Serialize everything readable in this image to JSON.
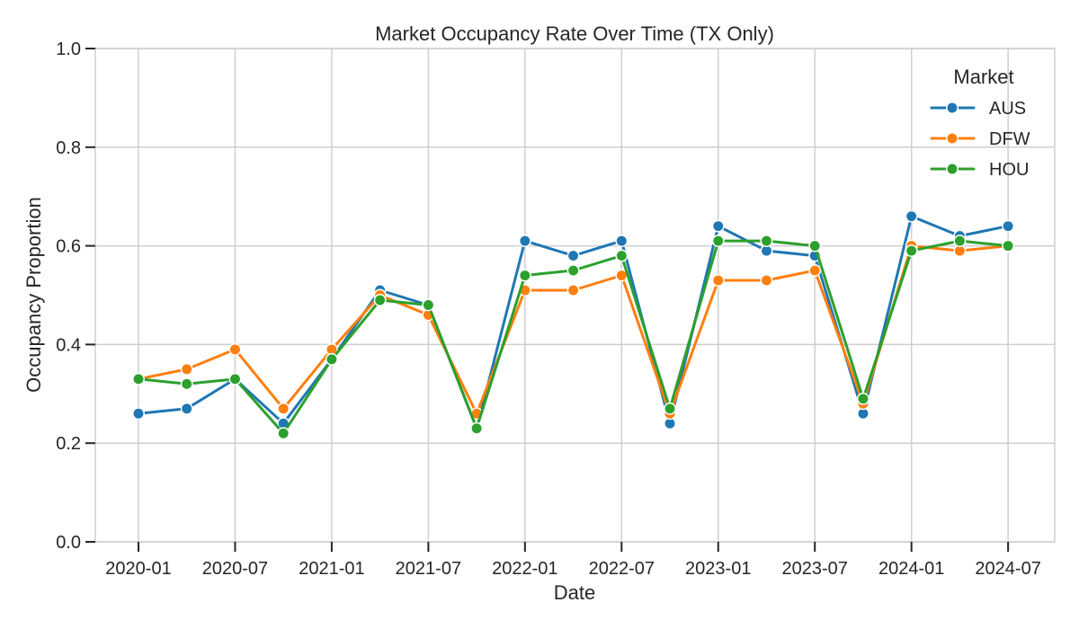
{
  "chart_data": {
    "type": "line",
    "title": "Market Occupancy Rate Over Time (TX Only)",
    "xlabel": "Date",
    "ylabel": "Occupancy Proportion",
    "x": [
      "2020-01",
      "2020-04",
      "2020-07",
      "2020-10",
      "2021-01",
      "2021-04",
      "2021-07",
      "2021-10",
      "2022-01",
      "2022-04",
      "2022-07",
      "2022-10",
      "2023-01",
      "2023-04",
      "2023-07",
      "2023-10",
      "2024-01",
      "2024-04",
      "2024-07"
    ],
    "x_tick_labels": [
      "2020-01",
      "2020-07",
      "2021-01",
      "2021-07",
      "2022-01",
      "2022-07",
      "2023-01",
      "2023-07",
      "2024-01",
      "2024-07"
    ],
    "y_tick_labels": [
      "0.0",
      "0.2",
      "0.4",
      "0.6",
      "0.8",
      "1.0"
    ],
    "ylim": [
      0,
      1
    ],
    "grid": true,
    "legend": {
      "title": "Market",
      "placement": "top-right"
    },
    "series": [
      {
        "name": "AUS",
        "color": "#1f77b4",
        "values": [
          0.26,
          0.27,
          0.33,
          0.24,
          0.37,
          0.51,
          0.48,
          0.23,
          0.61,
          0.58,
          0.61,
          0.24,
          0.64,
          0.59,
          0.58,
          0.26,
          0.66,
          0.62,
          0.64
        ]
      },
      {
        "name": "DFW",
        "color": "#ff7f0e",
        "values": [
          0.33,
          0.35,
          0.39,
          0.27,
          0.39,
          0.5,
          0.46,
          0.26,
          0.51,
          0.51,
          0.54,
          0.26,
          0.53,
          0.53,
          0.55,
          0.28,
          0.6,
          0.59,
          0.6
        ]
      },
      {
        "name": "HOU",
        "color": "#2ca02c",
        "values": [
          0.33,
          0.32,
          0.33,
          0.22,
          0.37,
          0.49,
          0.48,
          0.23,
          0.54,
          0.55,
          0.58,
          0.27,
          0.61,
          0.61,
          0.6,
          0.29,
          0.59,
          0.61,
          0.6
        ]
      }
    ]
  }
}
